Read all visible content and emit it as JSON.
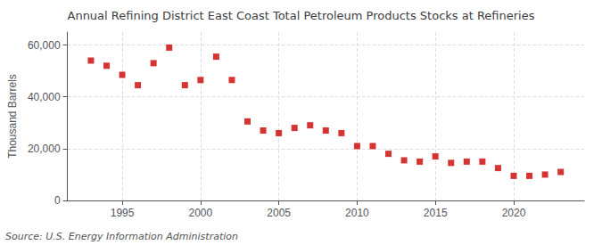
{
  "chart_data": {
    "type": "scatter",
    "title": "Annual Refining District East Coast Total Petroleum Products Stocks at Refineries",
    "ylabel": "Thousand Barrels",
    "source": "Source: U.S. Energy Information Administration",
    "x": [
      1993,
      1994,
      1995,
      1996,
      1997,
      1998,
      1999,
      2000,
      2001,
      2002,
      2003,
      2004,
      2005,
      2006,
      2007,
      2008,
      2009,
      2010,
      2011,
      2012,
      2013,
      2014,
      2015,
      2016,
      2017,
      2018,
      2019,
      2020,
      2021,
      2022,
      2023
    ],
    "values": [
      54000,
      52000,
      48500,
      44500,
      53000,
      59000,
      44500,
      46500,
      55500,
      46500,
      30500,
      27000,
      26000,
      28000,
      29000,
      27000,
      26000,
      21000,
      21000,
      18000,
      15500,
      15000,
      17000,
      14500,
      15000,
      15000,
      12500,
      9500,
      9500,
      10000,
      11000
    ],
    "color": "#CC0000",
    "marker": "square",
    "xlim": [
      1991.5,
      2024.5
    ],
    "xticks": [
      1995,
      2000,
      2005,
      2010,
      2015,
      2020
    ],
    "ylim": [
      0,
      65000
    ],
    "yticks": [
      0,
      {
        "value": 20000,
        "label": "20,000"
      },
      {
        "value": 40000,
        "label": "40,000"
      },
      {
        "value": 60000,
        "label": "60,000"
      }
    ],
    "grid": true
  }
}
